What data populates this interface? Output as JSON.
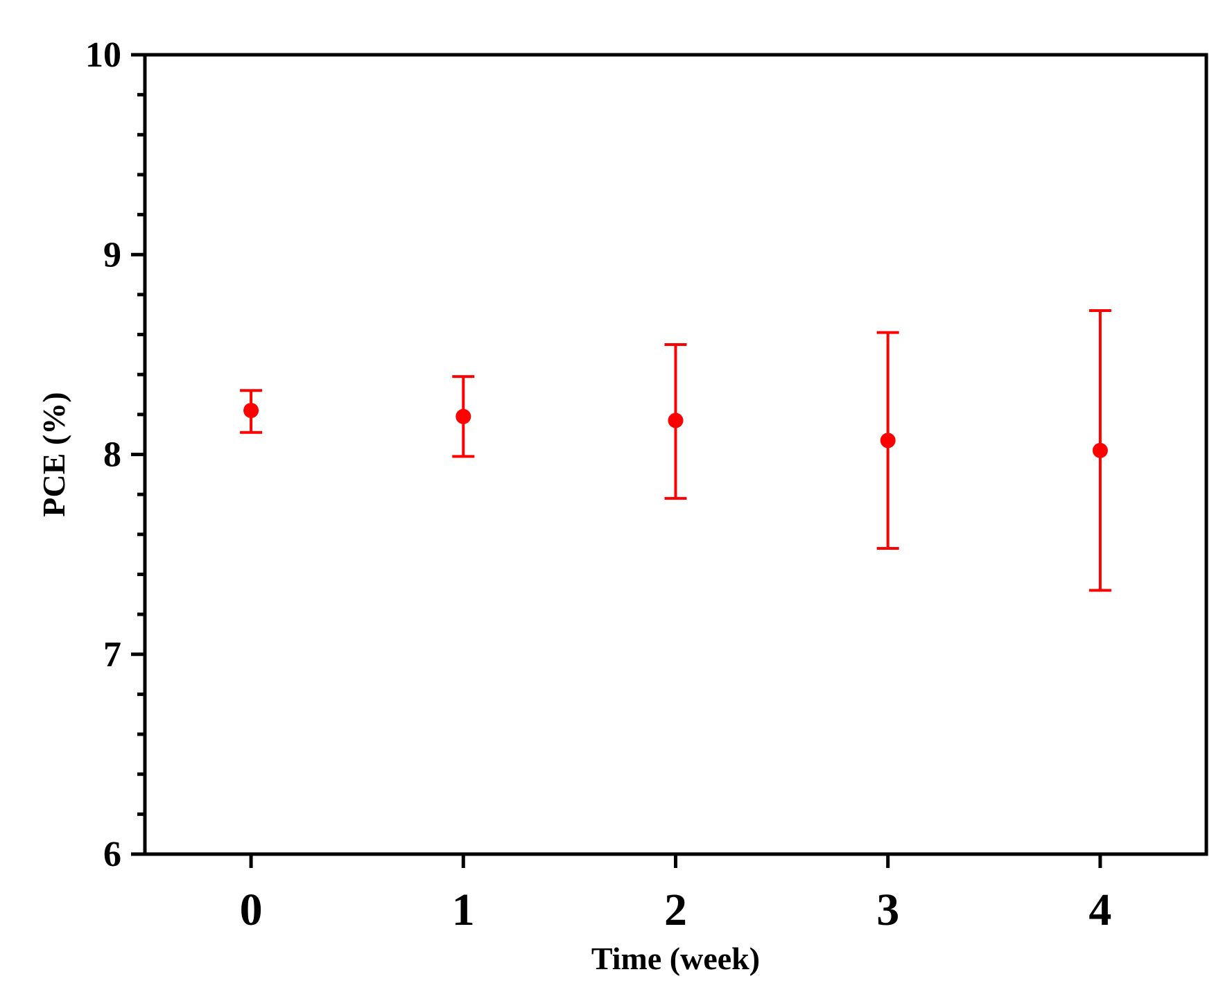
{
  "chart_data": {
    "type": "scatter",
    "title": "",
    "xlabel": "Time (week)",
    "ylabel": "PCE (%)",
    "xlim": [
      -0.5,
      4.5
    ],
    "ylim": [
      6,
      10
    ],
    "x_ticks": [
      0,
      1,
      2,
      3,
      4
    ],
    "x_tick_labels": [
      "0",
      "1",
      "2",
      "3",
      "4"
    ],
    "y_ticks": [
      6,
      7,
      8,
      9,
      10
    ],
    "y_tick_labels": [
      "6",
      "7",
      "8",
      "9",
      "10"
    ],
    "y_minor_step": 0.2,
    "grid": false,
    "legend": "none",
    "series": [
      {
        "color": "#ff0000",
        "points": [
          {
            "x": 0,
            "y": 8.22,
            "err_low": 8.11,
            "err_high": 8.32
          },
          {
            "x": 1,
            "y": 8.19,
            "err_low": 7.99,
            "err_high": 8.39
          },
          {
            "x": 2,
            "y": 8.17,
            "err_low": 7.78,
            "err_high": 8.55
          },
          {
            "x": 3,
            "y": 8.07,
            "err_low": 7.53,
            "err_high": 8.61
          },
          {
            "x": 4,
            "y": 8.02,
            "err_low": 7.32,
            "err_high": 8.72
          }
        ]
      }
    ],
    "axis_color": "#000000"
  }
}
